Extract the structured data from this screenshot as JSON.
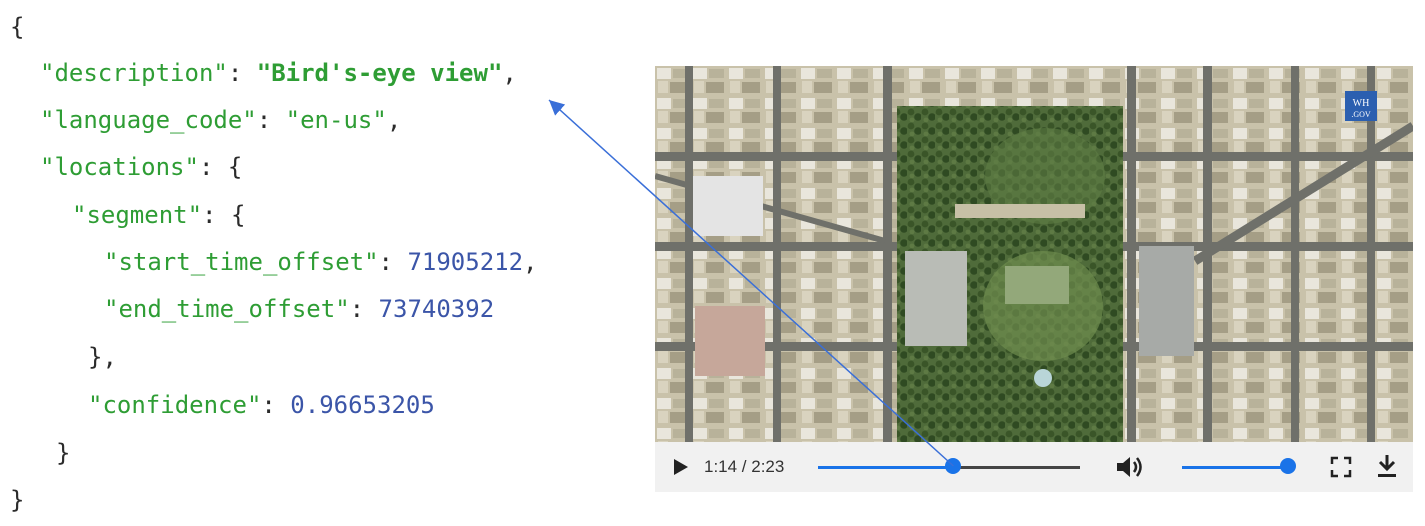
{
  "code": {
    "l1": "{",
    "l2_key": "\"description\"",
    "l2_colon": ": ",
    "l2_val": "\"Bird's-eye view\"",
    "l2_comma": ",",
    "l3_key": "\"language_code\"",
    "l3_colon": ": ",
    "l3_val": "\"en-us\"",
    "l3_comma": ",",
    "l4_key": "\"locations\"",
    "l4_rest": ": {",
    "l5_key": "\"segment\"",
    "l5_rest": ": {",
    "l6_key": "\"start_time_offset\"",
    "l6_colon": ": ",
    "l6_val": "71905212",
    "l6_comma": ",",
    "l7_key": "\"end_time_offset\"",
    "l7_colon": ": ",
    "l7_val": "73740392",
    "l8": "},",
    "l9_key": "\"confidence\"",
    "l9_colon": ": ",
    "l9_val": "0.96653205",
    "l10": "}",
    "l11": "}"
  },
  "player": {
    "time": "1:14 / 2:23",
    "progress": 0.517,
    "volume": 1.0,
    "watermark_line1": "WH",
    "watermark_line2": ".GOV",
    "icons": [
      "play-icon",
      "volume-icon",
      "fullscreen-icon",
      "download-icon"
    ]
  },
  "colors": {
    "key": "#2e9d34",
    "number": "#3b55a8",
    "accent": "#1a73e8"
  }
}
